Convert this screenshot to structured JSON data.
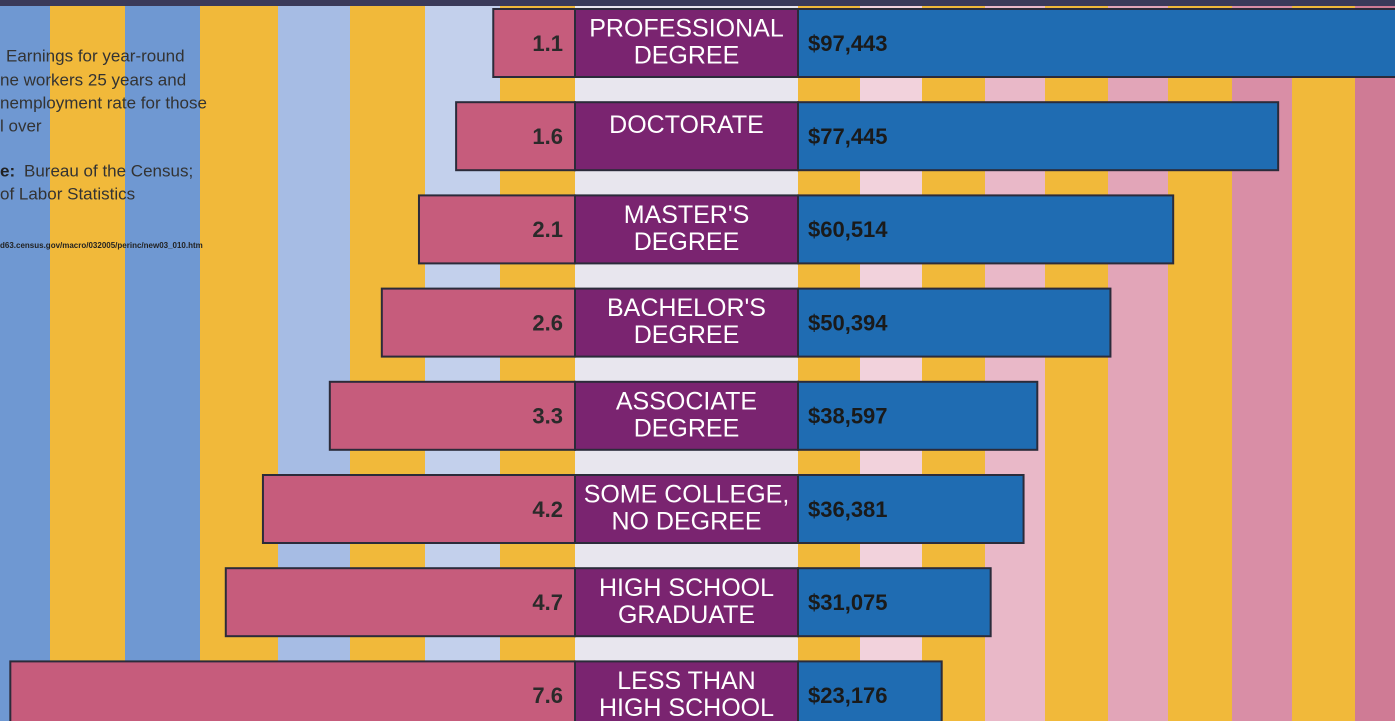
{
  "chart_data": {
    "type": "butterfly",
    "notes": [
      "Earnings for year-round",
      "ne workers 25 years and",
      "nemployment rate for those",
      "l over"
    ],
    "source_label": "e:",
    "source_lines": [
      "Bureau of the Census;",
      "of Labor Statistics"
    ],
    "url": "d63.census.gov/macro/032005/perinc/new03_010.htm",
    "categories": [
      [
        "PROFESSIONAL",
        "DEGREE"
      ],
      [
        "DOCTORATE"
      ],
      [
        "MASTER'S",
        "DEGREE"
      ],
      [
        "BACHELOR'S",
        "DEGREE"
      ],
      [
        "ASSOCIATE",
        "DEGREE"
      ],
      [
        "SOME COLLEGE,",
        "NO DEGREE"
      ],
      [
        "HIGH SCHOOL",
        "GRADUATE"
      ],
      [
        "LESS THAN",
        "HIGH SCHOOL"
      ]
    ],
    "category_color": "#7a2470",
    "series": [
      {
        "color": "#c65c7c",
        "values": [
          1.1,
          1.6,
          2.1,
          2.6,
          3.3,
          4.2,
          4.7,
          7.6
        ]
      },
      {
        "color": "#1f6cb2",
        "values": [
          97443,
          77445,
          60514,
          50394,
          38597,
          36381,
          31075,
          23176
        ],
        "value_labels": [
          "$97,443",
          "$77,445",
          "$60,514",
          "$50,394",
          "$38,597",
          "$36,381",
          "$31,075",
          "$23,176"
        ]
      }
    ]
  }
}
